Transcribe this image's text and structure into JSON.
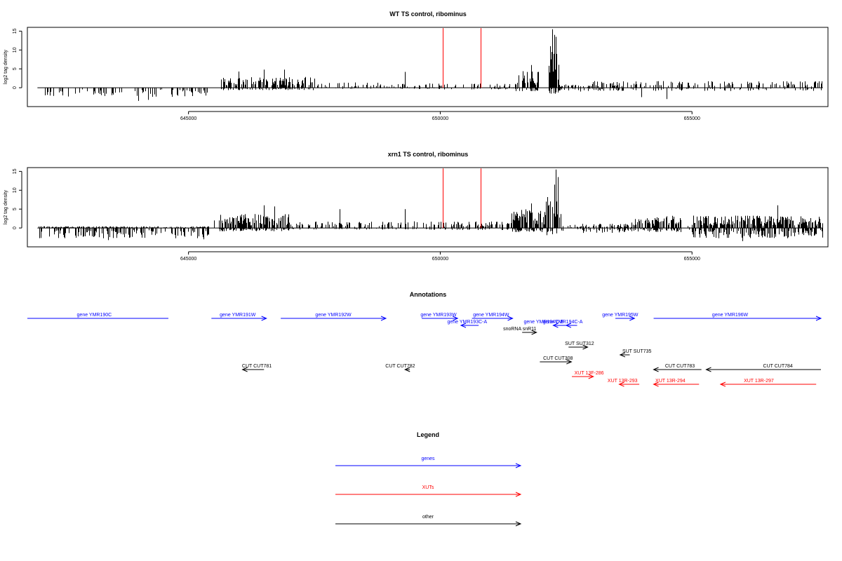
{
  "chart_data": [
    {
      "type": "bar",
      "title": "WT TS control, ribominus",
      "ylabel": "log2 tag density",
      "xlim": [
        641800,
        657700
      ],
      "ylim": [
        -5,
        16
      ],
      "xticks": [
        645000,
        650000,
        655000
      ],
      "yticks": [
        0,
        5,
        10,
        15
      ],
      "markers": [
        650050,
        650800
      ],
      "marker_color": "#ff0000",
      "segments": [
        {
          "from": 642000,
          "to": 645400,
          "pos": 0,
          "neg": 2.2,
          "density": 0.55
        },
        {
          "from": 645600,
          "to": 647500,
          "pos": 2.6,
          "neg": 0.6,
          "density": 0.85
        },
        {
          "from": 647500,
          "to": 649800,
          "pos": 1.3,
          "neg": 0.3,
          "density": 0.35
        },
        {
          "from": 649800,
          "to": 651500,
          "pos": 1.0,
          "neg": 0.4,
          "density": 0.35
        },
        {
          "from": 651500,
          "to": 652000,
          "pos": 4.0,
          "neg": 0.9,
          "density": 0.9
        },
        {
          "from": 652150,
          "to": 652350,
          "pos": 9.0,
          "neg": 1.5,
          "density": 1.0
        },
        {
          "from": 652350,
          "to": 653000,
          "pos": 0.8,
          "neg": 1.0,
          "density": 0.6
        },
        {
          "from": 653000,
          "to": 657600,
          "pos": 1.6,
          "neg": 0.8,
          "density": 0.45
        }
      ],
      "spikes": [
        [
          652220,
          15.5
        ],
        [
          652260,
          14
        ],
        [
          652300,
          13.5
        ],
        [
          652180,
          11
        ],
        [
          651800,
          6
        ],
        [
          649300,
          4.2
        ],
        [
          646000,
          4.3
        ],
        [
          646500,
          4.8
        ],
        [
          646900,
          4.8
        ],
        [
          644000,
          -3.5
        ],
        [
          644200,
          -3.2
        ],
        [
          654000,
          -2.5
        ],
        [
          654500,
          -3
        ]
      ]
    },
    {
      "type": "bar",
      "title": "xrn1 TS control, ribominus",
      "ylabel": "log2 tag density",
      "xlim": [
        641800,
        657700
      ],
      "ylim": [
        -5,
        16
      ],
      "xticks": [
        645000,
        650000,
        655000
      ],
      "yticks": [
        0,
        5,
        10,
        15
      ],
      "markers": [
        650050,
        650800
      ],
      "marker_color": "#ff0000",
      "segments": [
        {
          "from": 642000,
          "to": 645400,
          "pos": 0.4,
          "neg": 2.5,
          "density": 0.9
        },
        {
          "from": 645600,
          "to": 647000,
          "pos": 3.4,
          "neg": 0.8,
          "density": 1.0
        },
        {
          "from": 647000,
          "to": 649800,
          "pos": 1.6,
          "neg": 0.4,
          "density": 0.35
        },
        {
          "from": 649800,
          "to": 651400,
          "pos": 1.6,
          "neg": 0.5,
          "density": 0.6
        },
        {
          "from": 651400,
          "to": 652100,
          "pos": 4.5,
          "neg": 1.0,
          "density": 1.0
        },
        {
          "from": 652100,
          "to": 652400,
          "pos": 9.0,
          "neg": 2.0,
          "density": 1.0
        },
        {
          "from": 652400,
          "to": 653800,
          "pos": 1.0,
          "neg": 1.2,
          "density": 0.6
        },
        {
          "from": 653800,
          "to": 654800,
          "pos": 3.0,
          "neg": 1.0,
          "density": 0.95
        },
        {
          "from": 654800,
          "to": 655000,
          "pos": 0.5,
          "neg": 0.5,
          "density": 0.3
        },
        {
          "from": 655000,
          "to": 657600,
          "pos": 3.0,
          "neg": 2.5,
          "density": 1.0
        }
      ],
      "spikes": [
        [
          652300,
          15.5
        ],
        [
          652340,
          13.5
        ],
        [
          652260,
          11.5
        ],
        [
          651800,
          6.5
        ],
        [
          649300,
          5
        ],
        [
          646500,
          6
        ],
        [
          646700,
          5.7
        ],
        [
          648000,
          5
        ],
        [
          645500,
          2
        ],
        [
          656700,
          6
        ],
        [
          656000,
          -3.5
        ],
        [
          643400,
          -3.2
        ],
        [
          645300,
          -3
        ]
      ]
    }
  ],
  "annotations": {
    "title": "Annotations",
    "features": [
      {
        "label": "gene YMR190C",
        "start": 641800,
        "end": 644750,
        "dir": "none",
        "row": 0,
        "color": "#0000ff",
        "label_at": 643200
      },
      {
        "label": "gene YMR191W",
        "start": 645650,
        "end": 646800,
        "dir": "right",
        "row": 0,
        "color": "#0000ff",
        "label_at": 646200
      },
      {
        "label": "gene YMR192W",
        "start": 647100,
        "end": 649300,
        "dir": "right",
        "row": 0,
        "color": "#0000ff",
        "label_at": 648200
      },
      {
        "label": "gene YMR193W",
        "start": 650050,
        "end": 650800,
        "dir": "right",
        "row": 0,
        "color": "#0000ff",
        "label_at": 650400
      },
      {
        "label": "gene YMR194W",
        "start": 651100,
        "end": 651950,
        "dir": "right",
        "row": 0,
        "color": "#0000ff",
        "label_at": 651500
      },
      {
        "label": "gene YMR195W",
        "start": 654100,
        "end": 654500,
        "dir": "right",
        "row": 0,
        "color": "#0000ff",
        "label_at": 654200
      },
      {
        "label": "gene YMR196W",
        "start": 654900,
        "end": 658400,
        "dir": "right",
        "row": 0,
        "color": "#0000ff",
        "label_at": 656500
      },
      {
        "label": "gene YMR193C-A",
        "start": 650870,
        "end": 651240,
        "dir": "left",
        "row": 1,
        "color": "#0000ff",
        "label_at": 651000
      },
      {
        "label": "gene YMR194C-A",
        "start": 653070,
        "end": 653300,
        "dir": "left",
        "row": 1,
        "color": "#0000ff",
        "label_at": 653000
      },
      {
        "label": "gene YMR194C-B",
        "start": 652800,
        "end": 653100,
        "dir": "left",
        "row": 1,
        "color": "#0000ff",
        "label_at": 652600
      },
      {
        "label": "snoRNA snR11",
        "start": 652150,
        "end": 652450,
        "dir": "right",
        "row": 2,
        "color": "#000000",
        "label_at": 652100
      },
      {
        "label": "SUT SUT312",
        "start": 653120,
        "end": 653520,
        "dir": "right",
        "row": 3,
        "color": "#000000",
        "label_at": 653350
      },
      {
        "label": "SUT SUT735",
        "start": 654200,
        "end": 654400,
        "dir": "left",
        "row": 4,
        "color": "#000000",
        "label_at": 654550
      },
      {
        "label": "CUT CUT308",
        "start": 652520,
        "end": 653180,
        "dir": "right",
        "row": 5,
        "color": "#000000",
        "label_at": 652900
      },
      {
        "label": "CUT CUT781",
        "start": 646300,
        "end": 646750,
        "dir": "left",
        "row": 6,
        "color": "#000000",
        "label_at": 646600
      },
      {
        "label": "CUT CUT782",
        "start": 649700,
        "end": 649800,
        "dir": "left",
        "row": 6,
        "color": "#000000",
        "label_at": 649600
      },
      {
        "label": "CUT CUT783",
        "start": 654900,
        "end": 655900,
        "dir": "left",
        "row": 6,
        "color": "#000000",
        "label_at": 655450
      },
      {
        "label": "CUT CUT784",
        "start": 656000,
        "end": 658400,
        "dir": "left",
        "row": 6,
        "color": "#000000",
        "label_at": 657500
      },
      {
        "label": "XUT 13F-286",
        "start": 653190,
        "end": 653640,
        "dir": "right",
        "row": 7,
        "color": "#ff0000",
        "label_at": 653550
      },
      {
        "label": "XUT 13R-293",
        "start": 654180,
        "end": 654600,
        "dir": "left",
        "row": 8,
        "color": "#ff0000",
        "label_at": 654250
      },
      {
        "label": "XUT 13R-294",
        "start": 654900,
        "end": 655850,
        "dir": "left",
        "row": 8,
        "color": "#ff0000",
        "label_at": 655250
      },
      {
        "label": "XUT 13R-297",
        "start": 656300,
        "end": 658300,
        "dir": "left",
        "row": 8,
        "color": "#ff0000",
        "label_at": 657100
      }
    ]
  },
  "legend": {
    "title": "Legend",
    "items": [
      {
        "label": "genes",
        "color": "#0000ff"
      },
      {
        "label": "XUTs",
        "color": "#ff0000"
      },
      {
        "label": "other",
        "color": "#000000"
      }
    ]
  }
}
